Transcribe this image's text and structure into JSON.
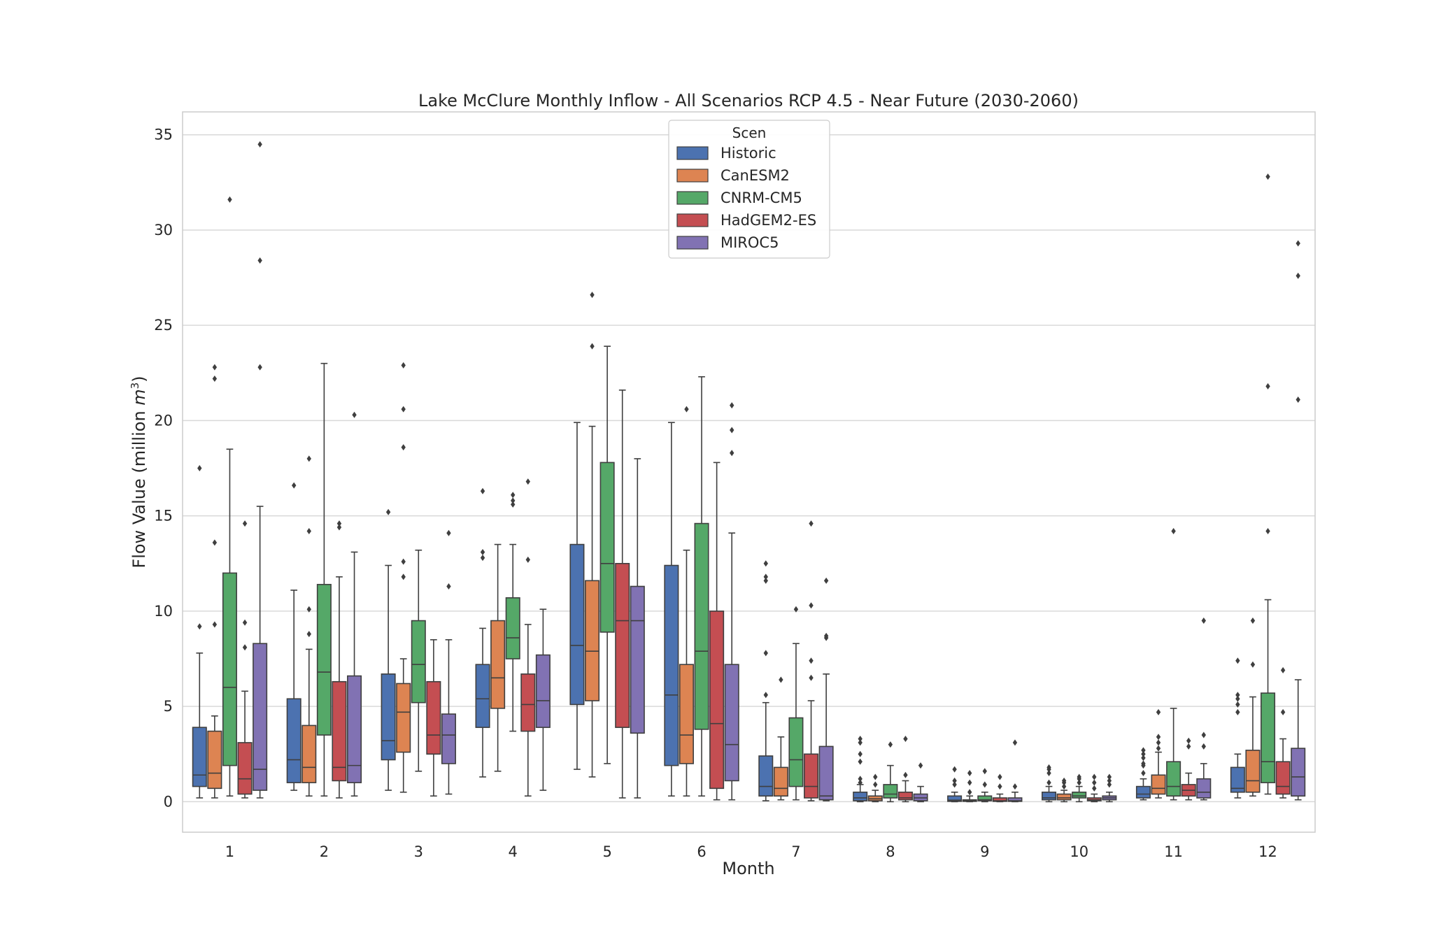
{
  "chart_data": {
    "type": "boxplot",
    "title": "Lake McClure Monthly Inflow - All Scenarios RCP 4.5 - Near Future (2030-2060)",
    "xlabel": "Month",
    "ylabel": "Flow Value (million m³)",
    "ylabel_main": "Flow Value (million ",
    "ylabel_unit": "m",
    "ylabel_sup": "3",
    "ylabel_close": ")",
    "ylim": [
      -1.6,
      36.2
    ],
    "yticks": [
      0,
      5,
      10,
      15,
      20,
      25,
      30,
      35
    ],
    "grid": "horizontal",
    "categories": [
      "1",
      "2",
      "3",
      "4",
      "5",
      "6",
      "7",
      "8",
      "9",
      "10",
      "11",
      "12"
    ],
    "legend": {
      "title": "Scen",
      "placement": "top-center"
    },
    "series": [
      {
        "name": "Historic",
        "color": "#4c72b0",
        "boxes": [
          {
            "whislo": 0.2,
            "q1": 0.8,
            "med": 1.4,
            "q3": 3.9,
            "whishi": 7.8,
            "fliers": [
              9.2,
              17.5
            ]
          },
          {
            "whislo": 0.6,
            "q1": 1.0,
            "med": 2.2,
            "q3": 5.4,
            "whishi": 11.1,
            "fliers": [
              16.6
            ]
          },
          {
            "whislo": 0.6,
            "q1": 2.2,
            "med": 3.2,
            "q3": 6.7,
            "whishi": 12.4,
            "fliers": [
              15.2
            ]
          },
          {
            "whislo": 1.3,
            "q1": 3.9,
            "med": 5.4,
            "q3": 7.2,
            "whishi": 9.1,
            "fliers": [
              12.8,
              13.1,
              16.3
            ]
          },
          {
            "whislo": 1.7,
            "q1": 5.1,
            "med": 8.2,
            "q3": 13.5,
            "whishi": 19.9,
            "fliers": []
          },
          {
            "whislo": 0.3,
            "q1": 1.9,
            "med": 5.6,
            "q3": 12.4,
            "whishi": 19.9,
            "fliers": []
          },
          {
            "whislo": 0.05,
            "q1": 0.3,
            "med": 0.8,
            "q3": 2.4,
            "whishi": 5.2,
            "fliers": [
              5.6,
              7.8,
              11.6,
              11.8,
              12.5
            ]
          },
          {
            "whislo": 0.0,
            "q1": 0.05,
            "med": 0.2,
            "q3": 0.5,
            "whishi": 0.9,
            "fliers": [
              1.0,
              1.2,
              2.1,
              2.5,
              3.1,
              3.3
            ]
          },
          {
            "whislo": 0.0,
            "q1": 0.02,
            "med": 0.08,
            "q3": 0.3,
            "whishi": 0.5,
            "fliers": [
              0.9,
              1.1,
              1.7
            ]
          },
          {
            "whislo": 0.0,
            "q1": 0.1,
            "med": 0.2,
            "q3": 0.5,
            "whishi": 0.8,
            "fliers": [
              1.0,
              1.5,
              1.7,
              1.8
            ]
          },
          {
            "whislo": 0.1,
            "q1": 0.2,
            "med": 0.4,
            "q3": 0.8,
            "whishi": 1.2,
            "fliers": [
              1.5,
              1.9,
              2.0,
              2.3,
              2.5,
              2.7
            ]
          },
          {
            "whislo": 0.2,
            "q1": 0.5,
            "med": 0.7,
            "q3": 1.8,
            "whishi": 2.5,
            "fliers": [
              4.7,
              5.1,
              5.4,
              5.6,
              7.4
            ]
          }
        ]
      },
      {
        "name": "CanESM2",
        "color": "#dd8452",
        "boxes": [
          {
            "whislo": 0.2,
            "q1": 0.7,
            "med": 1.5,
            "q3": 3.7,
            "whishi": 4.5,
            "fliers": [
              9.3,
              13.6,
              22.2,
              22.8
            ]
          },
          {
            "whislo": 0.3,
            "q1": 1.0,
            "med": 1.8,
            "q3": 4.0,
            "whishi": 8.0,
            "fliers": [
              8.8,
              10.1,
              14.2,
              18.0
            ]
          },
          {
            "whislo": 0.5,
            "q1": 2.6,
            "med": 4.7,
            "q3": 6.2,
            "whishi": 7.5,
            "fliers": [
              11.8,
              12.6,
              18.6,
              20.6,
              22.9
            ]
          },
          {
            "whislo": 1.6,
            "q1": 4.9,
            "med": 6.5,
            "q3": 9.5,
            "whishi": 13.5,
            "fliers": []
          },
          {
            "whislo": 1.3,
            "q1": 5.3,
            "med": 7.9,
            "q3": 11.6,
            "whishi": 19.7,
            "fliers": [
              23.9,
              26.6
            ]
          },
          {
            "whislo": 0.3,
            "q1": 2.0,
            "med": 3.5,
            "q3": 7.2,
            "whishi": 13.2,
            "fliers": [
              20.6
            ]
          },
          {
            "whislo": 0.1,
            "q1": 0.3,
            "med": 0.7,
            "q3": 1.8,
            "whishi": 3.4,
            "fliers": [
              6.4
            ]
          },
          {
            "whislo": 0.0,
            "q1": 0.05,
            "med": 0.15,
            "q3": 0.3,
            "whishi": 0.6,
            "fliers": [
              0.9,
              1.3
            ]
          },
          {
            "whislo": 0.0,
            "q1": 0.02,
            "med": 0.05,
            "q3": 0.1,
            "whishi": 0.3,
            "fliers": [
              0.5,
              1.0,
              1.5
            ]
          },
          {
            "whislo": 0.0,
            "q1": 0.1,
            "med": 0.2,
            "q3": 0.4,
            "whishi": 0.6,
            "fliers": [
              0.8,
              1.0,
              1.1
            ]
          },
          {
            "whislo": 0.2,
            "q1": 0.4,
            "med": 0.7,
            "q3": 1.4,
            "whishi": 2.6,
            "fliers": [
              2.8,
              3.1,
              3.4,
              4.7
            ]
          },
          {
            "whislo": 0.3,
            "q1": 0.5,
            "med": 1.1,
            "q3": 2.7,
            "whishi": 5.5,
            "fliers": [
              7.2,
              9.5
            ]
          }
        ]
      },
      {
        "name": "CNRM-CM5",
        "color": "#55a868",
        "boxes": [
          {
            "whislo": 0.3,
            "q1": 1.9,
            "med": 6.0,
            "q3": 12.0,
            "whishi": 18.5,
            "fliers": [
              31.6
            ]
          },
          {
            "whislo": 0.3,
            "q1": 3.5,
            "med": 6.8,
            "q3": 11.4,
            "whishi": 23.0,
            "fliers": []
          },
          {
            "whislo": 1.6,
            "q1": 5.2,
            "med": 7.2,
            "q3": 9.5,
            "whishi": 13.2,
            "fliers": []
          },
          {
            "whislo": 3.7,
            "q1": 7.5,
            "med": 8.6,
            "q3": 10.7,
            "whishi": 13.5,
            "fliers": [
              15.6,
              15.8,
              16.1
            ]
          },
          {
            "whislo": 2.0,
            "q1": 8.9,
            "med": 12.5,
            "q3": 17.8,
            "whishi": 23.9,
            "fliers": []
          },
          {
            "whislo": 0.3,
            "q1": 3.8,
            "med": 7.9,
            "q3": 14.6,
            "whishi": 22.3,
            "fliers": []
          },
          {
            "whislo": 0.1,
            "q1": 0.8,
            "med": 2.2,
            "q3": 4.4,
            "whishi": 8.3,
            "fliers": [
              10.1
            ]
          },
          {
            "whislo": 0.0,
            "q1": 0.2,
            "med": 0.4,
            "q3": 0.9,
            "whishi": 1.9,
            "fliers": [
              3.0
            ]
          },
          {
            "whislo": 0.0,
            "q1": 0.05,
            "med": 0.1,
            "q3": 0.3,
            "whishi": 0.5,
            "fliers": [
              0.9,
              1.6
            ]
          },
          {
            "whislo": 0.0,
            "q1": 0.2,
            "med": 0.3,
            "q3": 0.5,
            "whishi": 0.8,
            "fliers": [
              1.0,
              1.2,
              1.3
            ]
          },
          {
            "whislo": 0.1,
            "q1": 0.3,
            "med": 0.8,
            "q3": 2.1,
            "whishi": 4.9,
            "fliers": [
              14.2
            ]
          },
          {
            "whislo": 0.4,
            "q1": 1.0,
            "med": 2.1,
            "q3": 5.7,
            "whishi": 10.6,
            "fliers": [
              14.2,
              21.8,
              32.8
            ]
          }
        ]
      },
      {
        "name": "HadGEM2-ES",
        "color": "#c44e52",
        "boxes": [
          {
            "whislo": 0.2,
            "q1": 0.4,
            "med": 1.2,
            "q3": 3.1,
            "whishi": 5.8,
            "fliers": [
              8.1,
              9.4,
              14.6
            ]
          },
          {
            "whislo": 0.2,
            "q1": 1.1,
            "med": 1.8,
            "q3": 6.3,
            "whishi": 11.8,
            "fliers": [
              14.4,
              14.6
            ]
          },
          {
            "whislo": 0.3,
            "q1": 2.5,
            "med": 3.5,
            "q3": 6.3,
            "whishi": 8.5,
            "fliers": []
          },
          {
            "whislo": 0.3,
            "q1": 3.7,
            "med": 5.1,
            "q3": 6.7,
            "whishi": 9.3,
            "fliers": [
              12.7,
              16.8
            ]
          },
          {
            "whislo": 0.2,
            "q1": 3.9,
            "med": 9.5,
            "q3": 12.5,
            "whishi": 21.6,
            "fliers": []
          },
          {
            "whislo": 0.1,
            "q1": 0.7,
            "med": 4.1,
            "q3": 10.0,
            "whishi": 17.8,
            "fliers": []
          },
          {
            "whislo": 0.05,
            "q1": 0.2,
            "med": 0.8,
            "q3": 2.5,
            "whishi": 5.3,
            "fliers": [
              6.5,
              7.4,
              10.3,
              14.6
            ]
          },
          {
            "whislo": 0.0,
            "q1": 0.1,
            "med": 0.2,
            "q3": 0.5,
            "whishi": 1.1,
            "fliers": [
              1.4,
              3.3
            ]
          },
          {
            "whislo": 0.0,
            "q1": 0.02,
            "med": 0.05,
            "q3": 0.2,
            "whishi": 0.4,
            "fliers": [
              0.8,
              1.3
            ]
          },
          {
            "whislo": 0.0,
            "q1": 0.05,
            "med": 0.1,
            "q3": 0.2,
            "whishi": 0.4,
            "fliers": [
              0.7,
              1.0,
              1.3
            ]
          },
          {
            "whislo": 0.1,
            "q1": 0.3,
            "med": 0.6,
            "q3": 0.9,
            "whishi": 1.5,
            "fliers": [
              2.9,
              3.2
            ]
          },
          {
            "whislo": 0.2,
            "q1": 0.4,
            "med": 0.8,
            "q3": 2.1,
            "whishi": 3.3,
            "fliers": [
              4.7,
              6.9
            ]
          }
        ]
      },
      {
        "name": "MIROC5",
        "color": "#8172b3",
        "boxes": [
          {
            "whislo": 0.2,
            "q1": 0.6,
            "med": 1.7,
            "q3": 8.3,
            "whishi": 15.5,
            "fliers": [
              22.8,
              28.4,
              34.5
            ]
          },
          {
            "whislo": 0.3,
            "q1": 1.0,
            "med": 1.9,
            "q3": 6.6,
            "whishi": 13.1,
            "fliers": [
              20.3
            ]
          },
          {
            "whislo": 0.4,
            "q1": 2.0,
            "med": 3.5,
            "q3": 4.6,
            "whishi": 8.5,
            "fliers": [
              11.3,
              14.1
            ]
          },
          {
            "whislo": 0.6,
            "q1": 3.9,
            "med": 5.3,
            "q3": 7.7,
            "whishi": 10.1,
            "fliers": []
          },
          {
            "whislo": 0.2,
            "q1": 3.6,
            "med": 9.5,
            "q3": 11.3,
            "whishi": 18.0,
            "fliers": []
          },
          {
            "whislo": 0.1,
            "q1": 1.1,
            "med": 3.0,
            "q3": 7.2,
            "whishi": 14.1,
            "fliers": [
              18.3,
              19.5,
              20.8
            ]
          },
          {
            "whislo": 0.05,
            "q1": 0.1,
            "med": 0.3,
            "q3": 2.9,
            "whishi": 6.7,
            "fliers": [
              8.6,
              8.7,
              11.6
            ]
          },
          {
            "whislo": 0.0,
            "q1": 0.05,
            "med": 0.2,
            "q3": 0.4,
            "whishi": 0.8,
            "fliers": [
              1.9
            ]
          },
          {
            "whislo": 0.0,
            "q1": 0.02,
            "med": 0.05,
            "q3": 0.2,
            "whishi": 0.5,
            "fliers": [
              0.8,
              3.1
            ]
          },
          {
            "whislo": 0.0,
            "q1": 0.1,
            "med": 0.2,
            "q3": 0.3,
            "whishi": 0.5,
            "fliers": [
              0.9,
              1.1,
              1.3
            ]
          },
          {
            "whislo": 0.1,
            "q1": 0.2,
            "med": 0.5,
            "q3": 1.2,
            "whishi": 2.0,
            "fliers": [
              2.9,
              3.5,
              9.5
            ]
          },
          {
            "whislo": 0.1,
            "q1": 0.3,
            "med": 1.3,
            "q3": 2.8,
            "whishi": 6.4,
            "fliers": [
              21.1,
              27.6,
              29.3
            ]
          }
        ]
      }
    ]
  }
}
